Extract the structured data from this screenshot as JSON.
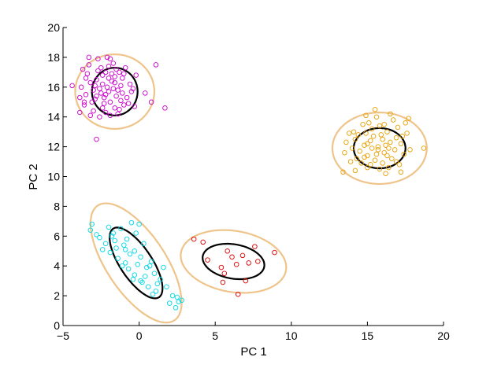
{
  "chart_data": {
    "type": "scatter",
    "title": "",
    "xlabel": "PC 1",
    "ylabel": "PC 2",
    "xlim": [
      -5,
      20
    ],
    "ylim": [
      0,
      20
    ],
    "xticks": [
      -5,
      0,
      5,
      10,
      15,
      20
    ],
    "xtick_labels": [
      "−5",
      "0",
      "5",
      "10",
      "15",
      "20"
    ],
    "yticks": [
      0,
      2,
      4,
      6,
      8,
      10,
      12,
      14,
      16,
      18,
      20
    ],
    "ytick_labels": [
      "0",
      "2",
      "4",
      "6",
      "8",
      "10",
      "12",
      "14",
      "16",
      "18",
      "20"
    ],
    "grid": false,
    "legend": "none",
    "marker": "open-circle",
    "series": [
      {
        "color": "#cc00cc",
        "points": [
          [
            -2.1,
            16.0
          ],
          [
            -2.5,
            15.6
          ],
          [
            -1.8,
            16.4
          ],
          [
            -2.9,
            15.2
          ],
          [
            -1.4,
            15.8
          ],
          [
            -2.3,
            14.9
          ],
          [
            -3.2,
            16.3
          ],
          [
            -1.1,
            16.6
          ],
          [
            -2.7,
            17.1
          ],
          [
            -1.6,
            14.6
          ],
          [
            -3.5,
            15.5
          ],
          [
            -2.0,
            17.4
          ],
          [
            -0.8,
            15.3
          ],
          [
            -2.4,
            16.8
          ],
          [
            -1.9,
            15.0
          ],
          [
            -3.0,
            14.4
          ],
          [
            -1.3,
            17.0
          ],
          [
            -2.6,
            15.9
          ],
          [
            -3.4,
            16.9
          ],
          [
            -1.0,
            14.8
          ],
          [
            -2.2,
            14.3
          ],
          [
            -1.7,
            17.6
          ],
          [
            -3.8,
            16.0
          ],
          [
            -0.6,
            16.2
          ],
          [
            -2.8,
            16.5
          ],
          [
            -1.5,
            15.4
          ],
          [
            -2.0,
            15.7
          ],
          [
            -3.1,
            15.0
          ],
          [
            -1.2,
            16.1
          ],
          [
            -2.4,
            14.6
          ],
          [
            -3.6,
            14.8
          ],
          [
            -0.9,
            17.3
          ],
          [
            -2.7,
            17.9
          ],
          [
            -1.8,
            16.9
          ],
          [
            -3.3,
            17.5
          ],
          [
            -1.4,
            14.2
          ],
          [
            -2.1,
            18.0
          ],
          [
            -2.9,
            16.1
          ],
          [
            -1.6,
            16.3
          ],
          [
            -0.7,
            14.9
          ],
          [
            -3.9,
            15.3
          ],
          [
            -2.3,
            15.3
          ],
          [
            -1.9,
            14.1
          ],
          [
            -2.5,
            17.3
          ],
          [
            -1.1,
            15.6
          ],
          [
            -3.0,
            15.8
          ],
          [
            -1.5,
            17.2
          ],
          [
            -2.6,
            14.0
          ],
          [
            -0.5,
            15.7
          ],
          [
            -3.2,
            14.1
          ],
          [
            -2.0,
            16.6
          ],
          [
            -1.3,
            14.5
          ],
          [
            -2.8,
            15.4
          ],
          [
            -1.7,
            15.9
          ],
          [
            -2.2,
            17.0
          ],
          [
            -3.5,
            16.6
          ],
          [
            -1.0,
            16.9
          ],
          [
            -2.4,
            16.2
          ],
          [
            -3.7,
            17.2
          ],
          [
            -1.2,
            15.1
          ],
          [
            -4.4,
            16.1
          ],
          [
            -3.3,
            18.0
          ],
          [
            -1.9,
            17.9
          ],
          [
            -0.2,
            16.8
          ],
          [
            -3.9,
            14.3
          ],
          [
            -2.8,
            12.5
          ],
          [
            -0.3,
            14.7
          ],
          [
            1.1,
            17.5
          ],
          [
            1.7,
            14.6
          ],
          [
            0.8,
            15.0
          ],
          [
            0.4,
            15.6
          ],
          [
            -0.4,
            15.9
          ],
          [
            -3.6,
            15.0
          ],
          [
            -2.2,
            15.5
          ],
          [
            -1.6,
            16.7
          ]
        ]
      },
      {
        "color": "#e8a000",
        "points": [
          [
            15.7,
            12.0
          ],
          [
            16.1,
            11.6
          ],
          [
            15.2,
            12.4
          ],
          [
            16.5,
            12.3
          ],
          [
            15.0,
            11.4
          ],
          [
            15.9,
            12.8
          ],
          [
            16.8,
            11.8
          ],
          [
            14.8,
            12.1
          ],
          [
            15.5,
            11.1
          ],
          [
            16.3,
            13.0
          ],
          [
            14.5,
            11.7
          ],
          [
            16.9,
            12.6
          ],
          [
            15.3,
            13.2
          ],
          [
            16.0,
            10.9
          ],
          [
            14.9,
            12.9
          ],
          [
            17.2,
            12.2
          ],
          [
            15.6,
            11.5
          ],
          [
            14.2,
            12.5
          ],
          [
            16.6,
            11.2
          ],
          [
            15.1,
            13.6
          ],
          [
            17.0,
            13.3
          ],
          [
            14.0,
            11.9
          ],
          [
            16.4,
            10.6
          ],
          [
            15.8,
            13.4
          ],
          [
            14.6,
            10.9
          ],
          [
            17.4,
            11.5
          ],
          [
            15.4,
            12.7
          ],
          [
            16.2,
            12.1
          ],
          [
            14.3,
            11.2
          ],
          [
            17.6,
            12.9
          ],
          [
            15.0,
            10.6
          ],
          [
            16.7,
            13.8
          ],
          [
            14.1,
            13.0
          ],
          [
            15.7,
            11.8
          ],
          [
            16.4,
            11.9
          ],
          [
            14.7,
            13.5
          ],
          [
            17.1,
            10.8
          ],
          [
            15.2,
            10.8
          ],
          [
            16.0,
            12.5
          ],
          [
            13.6,
            12.3
          ],
          [
            17.5,
            13.6
          ],
          [
            14.4,
            12.8
          ],
          [
            16.9,
            11.0
          ],
          [
            15.6,
            14.0
          ],
          [
            13.9,
            11.0
          ],
          [
            17.8,
            11.8
          ],
          [
            15.3,
            11.9
          ],
          [
            16.1,
            13.5
          ],
          [
            14.8,
            11.3
          ],
          [
            17.3,
            12.7
          ],
          [
            13.5,
            11.6
          ],
          [
            16.5,
            14.2
          ],
          [
            14.2,
            10.4
          ],
          [
            18.7,
            11.9
          ],
          [
            13.4,
            10.3
          ],
          [
            15.5,
            14.5
          ],
          [
            17.7,
            13.9
          ],
          [
            16.2,
            10.2
          ],
          [
            14.9,
            14.1
          ],
          [
            17.2,
            10.3
          ],
          [
            15.0,
            12.2
          ],
          [
            16.3,
            11.4
          ],
          [
            13.8,
            12.9
          ],
          [
            15.8,
            10.5
          ]
        ]
      },
      {
        "color": "#00d8e8",
        "points": [
          [
            -3.1,
            6.8
          ],
          [
            -3.2,
            6.4
          ],
          [
            -2.6,
            5.9
          ],
          [
            -2.2,
            5.5
          ],
          [
            -1.8,
            6.0
          ],
          [
            -1.5,
            5.2
          ],
          [
            -1.2,
            6.5
          ],
          [
            -1.9,
            4.9
          ],
          [
            -0.8,
            5.8
          ],
          [
            -0.5,
            6.9
          ],
          [
            -1.4,
            4.5
          ],
          [
            -0.9,
            4.2
          ],
          [
            -0.3,
            5.0
          ],
          [
            -0.7,
            3.8
          ],
          [
            0.1,
            4.6
          ],
          [
            -0.2,
            6.2
          ],
          [
            0.4,
            3.3
          ],
          [
            -0.4,
            3.1
          ],
          [
            0.7,
            4.0
          ],
          [
            0.2,
            2.9
          ],
          [
            1.0,
            3.5
          ],
          [
            0.6,
            2.6
          ],
          [
            1.4,
            3.1
          ],
          [
            1.1,
            2.3
          ],
          [
            1.8,
            2.6
          ],
          [
            2.2,
            2.0
          ],
          [
            2.6,
            1.6
          ],
          [
            2.8,
            1.7
          ],
          [
            2.4,
            1.2
          ],
          [
            -2.0,
            6.6
          ],
          [
            -1.0,
            5.4
          ],
          [
            -0.1,
            4.1
          ],
          [
            0.3,
            5.5
          ],
          [
            -1.6,
            5.7
          ],
          [
            0.9,
            2.1
          ],
          [
            -0.6,
            4.8
          ],
          [
            1.6,
            3.9
          ],
          [
            2.0,
            1.5
          ],
          [
            -2.4,
            5.1
          ],
          [
            0.0,
            6.8
          ],
          [
            -1.1,
            4.0
          ],
          [
            0.5,
            3.9
          ],
          [
            1.2,
            2.8
          ],
          [
            -0.3,
            3.4
          ],
          [
            -1.7,
            6.2
          ],
          [
            0.8,
            4.3
          ],
          [
            2.5,
            1.9
          ],
          [
            -2.8,
            6.1
          ],
          [
            0.1,
            3.0
          ],
          [
            -0.9,
            5.1
          ]
        ]
      },
      {
        "color": "#dd0000",
        "points": [
          [
            3.6,
            5.8
          ],
          [
            4.2,
            5.6
          ],
          [
            4.5,
            4.4
          ],
          [
            5.8,
            5.0
          ],
          [
            6.1,
            4.6
          ],
          [
            5.4,
            3.9
          ],
          [
            5.6,
            3.5
          ],
          [
            6.4,
            4.1
          ],
          [
            6.8,
            4.7
          ],
          [
            7.2,
            4.2
          ],
          [
            7.6,
            5.3
          ],
          [
            7.0,
            3.0
          ],
          [
            6.5,
            2.1
          ],
          [
            5.5,
            2.9
          ],
          [
            8.9,
            4.9
          ],
          [
            7.8,
            4.3
          ]
        ]
      }
    ],
    "ellipses": [
      {
        "center": [
          -1.6,
          15.7
        ],
        "rx": 2.6,
        "ry": 2.5,
        "angle": 0,
        "level": "outer",
        "color": "#eec48a"
      },
      {
        "center": [
          -1.6,
          15.7
        ],
        "rx": 1.5,
        "ry": 1.6,
        "angle": 0,
        "level": "inner",
        "color": "#000000"
      },
      {
        "center": [
          15.8,
          11.9
        ],
        "rx": 3.1,
        "ry": 2.4,
        "angle": 0,
        "level": "outer",
        "color": "#eec48a"
      },
      {
        "center": [
          15.8,
          11.9
        ],
        "rx": 1.7,
        "ry": 1.35,
        "angle": 0,
        "level": "inner",
        "color": "#000000"
      },
      {
        "center": [
          -0.2,
          4.2
        ],
        "rx": 4.6,
        "ry": 1.95,
        "angle": -57,
        "level": "outer",
        "color": "#eec48a"
      },
      {
        "center": [
          -0.2,
          4.2
        ],
        "rx": 2.75,
        "ry": 1.05,
        "angle": -57,
        "level": "inner",
        "color": "#000000"
      },
      {
        "center": [
          6.2,
          4.3
        ],
        "rx": 3.5,
        "ry": 2.05,
        "angle": -10,
        "level": "outer",
        "color": "#eec48a"
      },
      {
        "center": [
          6.2,
          4.3
        ],
        "rx": 2.05,
        "ry": 1.15,
        "angle": -10,
        "level": "inner",
        "color": "#000000"
      }
    ]
  }
}
